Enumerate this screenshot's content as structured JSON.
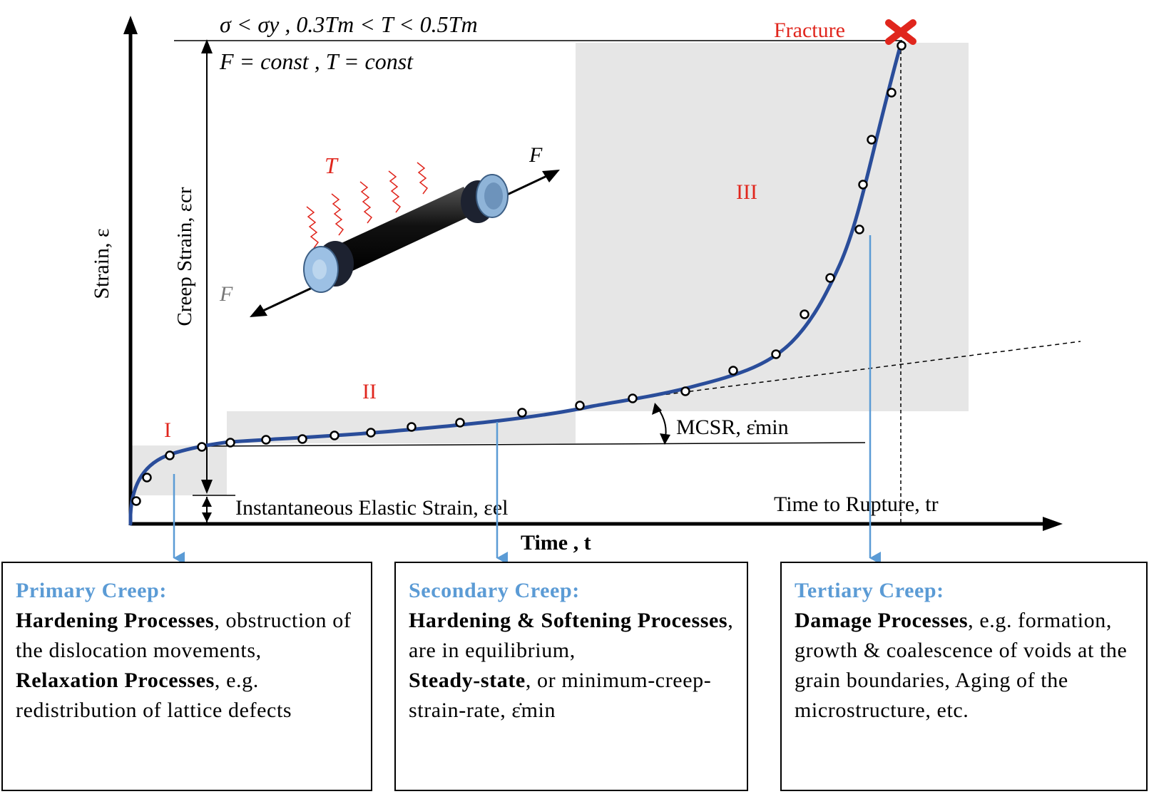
{
  "conditions": {
    "line1": "σ < σy , 0.3Tm < T < 0.5Tm",
    "line2": "F = const , T = const"
  },
  "fracture_label": "Fracture",
  "axes": {
    "y_label": "Strain, ε",
    "x_label": "Time , t"
  },
  "annotations": {
    "creep_strain": "Creep Strain, εcr",
    "elastic_strain": "Instantaneous Elastic Strain, εel",
    "mcsr": "MCSR, ε̇min",
    "time_to_rupture": "Time to Rupture, tr",
    "specimen_temp": "T",
    "force_right": "F",
    "force_left": "F"
  },
  "stages": {
    "primary": "I",
    "secondary": "II",
    "tertiary": "III"
  },
  "boxes": {
    "primary": {
      "heading": "Primary Creep:",
      "bold1": "Hardening Processes",
      "text1": ", obstruction of the dislocation movements,",
      "bold2": "Relaxation Processes",
      "text2": ", e.g. redistribution of lattice defects"
    },
    "secondary": {
      "heading": "Secondary Creep:",
      "bold1": "Hardening & Softening Processes",
      "text1": ", are in equilibrium,",
      "bold2": "Steady-state",
      "text2": ", or minimum-creep-strain-rate, ε̇min"
    },
    "tertiary": {
      "heading": "Tertiary Creep:",
      "bold1": "Damage Processes",
      "text1": ", e.g. formation, growth & coalescence of voids at the grain boundaries, Aging of the microstructure, etc."
    }
  },
  "colors": {
    "curve": "#2a4d9a",
    "arrow_blue": "#5b9bd5",
    "stage_red": "#e0261d",
    "region_gray": "#e6e6e6"
  }
}
